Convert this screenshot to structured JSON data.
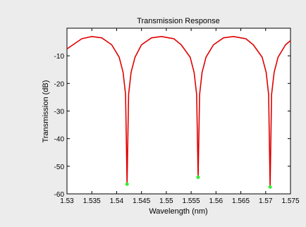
{
  "chart_data": {
    "type": "line",
    "title": "Transmission Response",
    "xlabel": "Wavelength (nm)",
    "ylabel": "Transmission (dB)",
    "xlim": [
      1.53,
      1.575
    ],
    "ylim": [
      -60,
      0
    ],
    "xticks": [
      "1.53",
      "1.535",
      "1.54",
      "1.545",
      "1.55",
      "1.555",
      "1.56",
      "1.565",
      "1.57",
      "1.575"
    ],
    "yticks": [
      "-10",
      "-20",
      "-30",
      "-40",
      "-50",
      "-60"
    ],
    "grid": false,
    "series": [
      {
        "style": "line",
        "color": "#e00000",
        "x": [
          1.53,
          1.533,
          1.535,
          1.537,
          1.539,
          1.5405,
          1.5413,
          1.5418,
          1.5421,
          1.5424,
          1.5429,
          1.5437,
          1.545,
          1.547,
          1.549,
          1.5515,
          1.553,
          1.5548,
          1.5556,
          1.5561,
          1.5564,
          1.5567,
          1.5572,
          1.558,
          1.5595,
          1.5615,
          1.5635,
          1.566,
          1.5675,
          1.5693,
          1.5701,
          1.5706,
          1.5709,
          1.5712,
          1.5717,
          1.5725,
          1.574,
          1.575
        ],
        "y": [
          -7.5,
          -3.8,
          -3.0,
          -3.5,
          -6.0,
          -10.5,
          -16.0,
          -24.0,
          -56.5,
          -24.0,
          -16.0,
          -10.5,
          -6.0,
          -3.5,
          -3.0,
          -3.8,
          -6.0,
          -10.5,
          -16.0,
          -24.0,
          -54.0,
          -24.0,
          -16.0,
          -10.5,
          -6.0,
          -3.5,
          -3.0,
          -3.8,
          -6.0,
          -10.5,
          -16.0,
          -24.0,
          -57.5,
          -24.0,
          -16.0,
          -10.5,
          -6.0,
          -4.5
        ]
      },
      {
        "style": "markers",
        "color": "#33ee33",
        "x": [
          1.5421,
          1.5564,
          1.5709
        ],
        "y": [
          -56.5,
          -54.0,
          -57.5
        ]
      }
    ]
  }
}
